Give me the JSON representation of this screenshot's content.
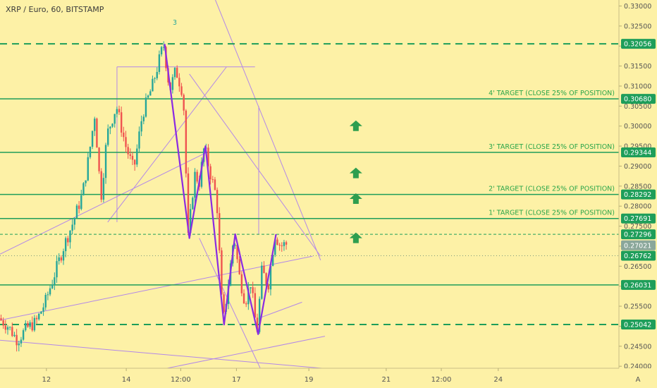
{
  "header": {
    "title": "XRP / Euro, 60, BITSTAMP",
    "marker": "3"
  },
  "colors": {
    "background": "#fdf1a6",
    "up_candle": "#26a69a",
    "down_candle": "#ef5350",
    "level_line": "#1e9e5a",
    "pattern": "#8a2be2",
    "trendline": "#b388e8",
    "arrow": "#2e9e4f",
    "badge": "#1e9e5a"
  },
  "controls": {
    "auto_scale_label": "A"
  },
  "chart_data": {
    "type": "candlestick",
    "title": "XRP / Euro, 60, BITSTAMP",
    "ylim": [
      0.2395,
      0.3315
    ],
    "y_ticks": [
      "0.33000",
      "0.32500",
      "0.32000",
      "0.31500",
      "0.31000",
      "0.30500",
      "0.30000",
      "0.29500",
      "0.29000",
      "0.28500",
      "0.28000",
      "0.27500",
      "0.27000",
      "0.26500",
      "0.26000",
      "0.25500",
      "0.25000",
      "0.24500",
      "0.24000"
    ],
    "x_ticks": [
      {
        "label": "12",
        "t": 0.075
      },
      {
        "label": "14",
        "t": 0.204
      },
      {
        "label": "12:00",
        "t": 0.292
      },
      {
        "label": "17",
        "t": 0.382
      },
      {
        "label": "19",
        "t": 0.499
      },
      {
        "label": "21",
        "t": 0.624
      },
      {
        "label": "12:00",
        "t": 0.713
      },
      {
        "label": "24",
        "t": 0.805
      }
    ],
    "price_path": [
      [
        0.0,
        0.252
      ],
      [
        0.015,
        0.25
      ],
      [
        0.03,
        0.2465
      ],
      [
        0.045,
        0.2495
      ],
      [
        0.06,
        0.251
      ],
      [
        0.075,
        0.256
      ],
      [
        0.09,
        0.263
      ],
      [
        0.105,
        0.27
      ],
      [
        0.12,
        0.276
      ],
      [
        0.135,
        0.283
      ],
      [
        0.145,
        0.292
      ],
      [
        0.155,
        0.303
      ],
      [
        0.165,
        0.282
      ],
      [
        0.175,
        0.298
      ],
      [
        0.19,
        0.305
      ],
      [
        0.205,
        0.295
      ],
      [
        0.218,
        0.289
      ],
      [
        0.232,
        0.303
      ],
      [
        0.248,
        0.31
      ],
      [
        0.266,
        0.3205
      ],
      [
        0.276,
        0.309
      ],
      [
        0.286,
        0.314
      ],
      [
        0.298,
        0.308
      ],
      [
        0.306,
        0.272
      ],
      [
        0.316,
        0.288
      ],
      [
        0.324,
        0.286
      ],
      [
        0.332,
        0.295
      ],
      [
        0.342,
        0.288
      ],
      [
        0.352,
        0.282
      ],
      [
        0.362,
        0.2504
      ],
      [
        0.372,
        0.262
      ],
      [
        0.38,
        0.273
      ],
      [
        0.388,
        0.263
      ],
      [
        0.398,
        0.256
      ],
      [
        0.407,
        0.261
      ],
      [
        0.417,
        0.248
      ],
      [
        0.425,
        0.264
      ],
      [
        0.435,
        0.26
      ],
      [
        0.446,
        0.273
      ],
      [
        0.455,
        0.27
      ],
      [
        0.462,
        0.2705
      ]
    ],
    "levels": [
      {
        "price": 0.32056,
        "label": "0.32056",
        "style": "dashed"
      },
      {
        "price": 0.3068,
        "label": "0.30680",
        "style": "solid",
        "annotation": "4' TARGET (CLOSE 25% OF POSITION)"
      },
      {
        "price": 0.29344,
        "label": "0.29344",
        "style": "solid",
        "annotation": "3' TARGET (CLOSE 25% OF POSITION)"
      },
      {
        "price": 0.28292,
        "label": "0.28292",
        "style": "solid",
        "annotation": "2' TARGET (CLOSE 25% OF POSITION)"
      },
      {
        "price": 0.27691,
        "label": "0.27691",
        "style": "solid",
        "annotation": "1' TARGET (CLOSE 25% OF POSITION)"
      },
      {
        "price": 0.27296,
        "label": "0.27296",
        "style": "dashed-thin"
      },
      {
        "price": 0.26762,
        "label": "0.26762",
        "style": "dotted"
      },
      {
        "price": 0.26031,
        "label": "0.26031",
        "style": "solid"
      },
      {
        "price": 0.25042,
        "label": "0.25042",
        "style": "dashed"
      }
    ],
    "current_price": {
      "price": 0.27021,
      "label": "0.27021"
    },
    "pattern_points": [
      [
        0.266,
        0.3205
      ],
      [
        0.306,
        0.272
      ],
      [
        0.332,
        0.295
      ],
      [
        0.362,
        0.2504
      ],
      [
        0.38,
        0.273
      ],
      [
        0.417,
        0.248
      ],
      [
        0.446,
        0.273
      ]
    ],
    "target_arrows": [
      {
        "t": 0.575,
        "price": 0.3
      },
      {
        "t": 0.575,
        "price": 0.2882
      },
      {
        "t": 0.575,
        "price": 0.2818
      },
      {
        "t": 0.575,
        "price": 0.272
      }
    ],
    "trendlines": [
      [
        [
          0.0,
          0.2465
        ],
        [
          0.52,
          0.2395
        ]
      ],
      [
        [
          0.0,
          0.2515
        ],
        [
          0.505,
          0.2675
        ]
      ],
      [
        [
          0.0,
          0.268
        ],
        [
          0.335,
          0.2935
        ]
      ],
      [
        [
          0.174,
          0.276
        ],
        [
          0.366,
          0.3148
        ]
      ],
      [
        [
          0.189,
          0.3148
        ],
        [
          0.412,
          0.3148
        ]
      ],
      [
        [
          0.189,
          0.3148
        ],
        [
          0.189,
          0.276
        ]
      ],
      [
        [
          0.348,
          0.3315
        ],
        [
          0.518,
          0.2665
        ]
      ],
      [
        [
          0.306,
          0.313
        ],
        [
          0.518,
          0.2675
        ]
      ],
      [
        [
          0.322,
          0.272
        ],
        [
          0.422,
          0.239
        ]
      ],
      [
        [
          0.27,
          0.2395
        ],
        [
          0.525,
          0.2475
        ]
      ],
      [
        [
          0.418,
          0.305
        ],
        [
          0.418,
          0.273
        ]
      ],
      [
        [
          0.418,
          0.252
        ],
        [
          0.488,
          0.256
        ]
      ]
    ]
  }
}
